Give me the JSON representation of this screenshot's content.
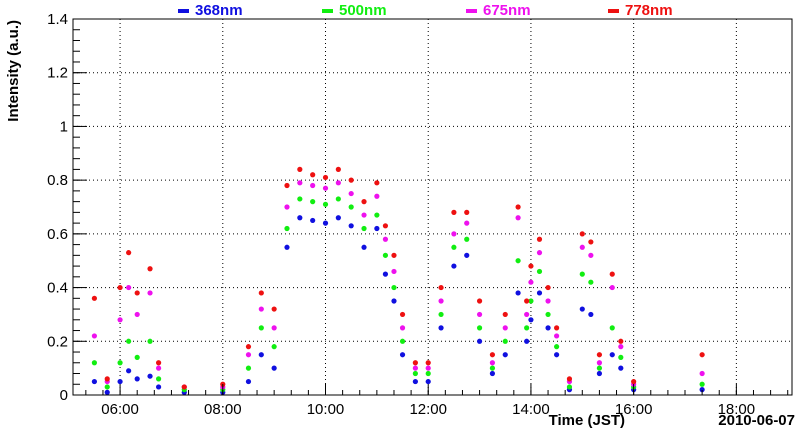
{
  "chart_data": {
    "type": "scatter",
    "title": "",
    "xlabel": "Time (JST)",
    "ylabel": "Intensity (a.u.)",
    "date_label": "2010-06-07",
    "xlim": [
      "05:05",
      "19:05"
    ],
    "ylim": [
      0,
      1.4
    ],
    "x_ticks": [
      "06:00",
      "08:00",
      "10:00",
      "12:00",
      "14:00",
      "16:00",
      "18:00"
    ],
    "y_ticks": [
      "0",
      "0.2",
      "0.4",
      "0.6",
      "0.8",
      "1",
      "1.2",
      "1.4"
    ],
    "grid": true,
    "legend_position": "top",
    "series": [
      {
        "name": "368nm",
        "color": "#1010e0",
        "points": [
          {
            "t": "05:30",
            "y": 0.05
          },
          {
            "t": "05:45",
            "y": 0.01
          },
          {
            "t": "06:00",
            "y": 0.05
          },
          {
            "t": "06:10",
            "y": 0.09
          },
          {
            "t": "06:20",
            "y": 0.06
          },
          {
            "t": "06:35",
            "y": 0.07
          },
          {
            "t": "06:45",
            "y": 0.03
          },
          {
            "t": "07:15",
            "y": 0.01
          },
          {
            "t": "08:00",
            "y": 0.01
          },
          {
            "t": "08:30",
            "y": 0.05
          },
          {
            "t": "08:45",
            "y": 0.15
          },
          {
            "t": "09:00",
            "y": 0.1
          },
          {
            "t": "09:15",
            "y": 0.55
          },
          {
            "t": "09:30",
            "y": 0.66
          },
          {
            "t": "09:45",
            "y": 0.65
          },
          {
            "t": "10:00",
            "y": 0.64
          },
          {
            "t": "10:15",
            "y": 0.66
          },
          {
            "t": "10:30",
            "y": 0.63
          },
          {
            "t": "10:45",
            "y": 0.55
          },
          {
            "t": "11:00",
            "y": 0.62
          },
          {
            "t": "11:10",
            "y": 0.45
          },
          {
            "t": "11:20",
            "y": 0.35
          },
          {
            "t": "11:30",
            "y": 0.15
          },
          {
            "t": "11:45",
            "y": 0.05
          },
          {
            "t": "12:00",
            "y": 0.05
          },
          {
            "t": "12:15",
            "y": 0.25
          },
          {
            "t": "12:30",
            "y": 0.48
          },
          {
            "t": "12:45",
            "y": 0.52
          },
          {
            "t": "13:00",
            "y": 0.2
          },
          {
            "t": "13:15",
            "y": 0.08
          },
          {
            "t": "13:30",
            "y": 0.15
          },
          {
            "t": "13:45",
            "y": 0.38
          },
          {
            "t": "13:55",
            "y": 0.2
          },
          {
            "t": "14:00",
            "y": 0.28
          },
          {
            "t": "14:10",
            "y": 0.38
          },
          {
            "t": "14:20",
            "y": 0.25
          },
          {
            "t": "14:30",
            "y": 0.15
          },
          {
            "t": "14:45",
            "y": 0.02
          },
          {
            "t": "15:00",
            "y": 0.32
          },
          {
            "t": "15:10",
            "y": 0.3
          },
          {
            "t": "15:20",
            "y": 0.08
          },
          {
            "t": "15:35",
            "y": 0.15
          },
          {
            "t": "15:45",
            "y": 0.1
          },
          {
            "t": "16:00",
            "y": 0.02
          },
          {
            "t": "17:20",
            "y": 0.02
          }
        ]
      },
      {
        "name": "500nm",
        "color": "#11ee11",
        "points": [
          {
            "t": "05:30",
            "y": 0.12
          },
          {
            "t": "05:45",
            "y": 0.03
          },
          {
            "t": "06:00",
            "y": 0.12
          },
          {
            "t": "06:10",
            "y": 0.2
          },
          {
            "t": "06:20",
            "y": 0.14
          },
          {
            "t": "06:35",
            "y": 0.2
          },
          {
            "t": "06:45",
            "y": 0.06
          },
          {
            "t": "07:15",
            "y": 0.02
          },
          {
            "t": "08:00",
            "y": 0.02
          },
          {
            "t": "08:30",
            "y": 0.1
          },
          {
            "t": "08:45",
            "y": 0.25
          },
          {
            "t": "09:00",
            "y": 0.18
          },
          {
            "t": "09:15",
            "y": 0.62
          },
          {
            "t": "09:30",
            "y": 0.73
          },
          {
            "t": "09:45",
            "y": 0.72
          },
          {
            "t": "10:00",
            "y": 0.71
          },
          {
            "t": "10:15",
            "y": 0.73
          },
          {
            "t": "10:30",
            "y": 0.7
          },
          {
            "t": "10:45",
            "y": 0.62
          },
          {
            "t": "11:00",
            "y": 0.67
          },
          {
            "t": "11:10",
            "y": 0.52
          },
          {
            "t": "11:20",
            "y": 0.4
          },
          {
            "t": "11:30",
            "y": 0.2
          },
          {
            "t": "11:45",
            "y": 0.08
          },
          {
            "t": "12:00",
            "y": 0.08
          },
          {
            "t": "12:15",
            "y": 0.3
          },
          {
            "t": "12:30",
            "y": 0.55
          },
          {
            "t": "12:45",
            "y": 0.58
          },
          {
            "t": "13:00",
            "y": 0.25
          },
          {
            "t": "13:15",
            "y": 0.1
          },
          {
            "t": "13:30",
            "y": 0.2
          },
          {
            "t": "13:45",
            "y": 0.5
          },
          {
            "t": "13:55",
            "y": 0.25
          },
          {
            "t": "14:00",
            "y": 0.35
          },
          {
            "t": "14:10",
            "y": 0.46
          },
          {
            "t": "14:20",
            "y": 0.3
          },
          {
            "t": "14:30",
            "y": 0.18
          },
          {
            "t": "14:45",
            "y": 0.03
          },
          {
            "t": "15:00",
            "y": 0.45
          },
          {
            "t": "15:10",
            "y": 0.42
          },
          {
            "t": "15:20",
            "y": 0.1
          },
          {
            "t": "15:35",
            "y": 0.25
          },
          {
            "t": "15:45",
            "y": 0.14
          },
          {
            "t": "16:00",
            "y": 0.03
          },
          {
            "t": "17:20",
            "y": 0.04
          }
        ]
      },
      {
        "name": "675nm",
        "color": "#ee11ee",
        "points": [
          {
            "t": "05:30",
            "y": 0.22
          },
          {
            "t": "05:45",
            "y": 0.05
          },
          {
            "t": "06:00",
            "y": 0.28
          },
          {
            "t": "06:10",
            "y": 0.4
          },
          {
            "t": "06:20",
            "y": 0.3
          },
          {
            "t": "06:35",
            "y": 0.38
          },
          {
            "t": "06:45",
            "y": 0.1
          },
          {
            "t": "07:15",
            "y": 0.03
          },
          {
            "t": "08:00",
            "y": 0.03
          },
          {
            "t": "08:30",
            "y": 0.15
          },
          {
            "t": "08:45",
            "y": 0.32
          },
          {
            "t": "09:00",
            "y": 0.25
          },
          {
            "t": "09:15",
            "y": 0.7
          },
          {
            "t": "09:30",
            "y": 0.79
          },
          {
            "t": "09:45",
            "y": 0.78
          },
          {
            "t": "10:00",
            "y": 0.77
          },
          {
            "t": "10:15",
            "y": 0.79
          },
          {
            "t": "10:30",
            "y": 0.75
          },
          {
            "t": "10:45",
            "y": 0.67
          },
          {
            "t": "11:00",
            "y": 0.74
          },
          {
            "t": "11:10",
            "y": 0.58
          },
          {
            "t": "11:20",
            "y": 0.46
          },
          {
            "t": "11:30",
            "y": 0.25
          },
          {
            "t": "11:45",
            "y": 0.1
          },
          {
            "t": "12:00",
            "y": 0.1
          },
          {
            "t": "12:15",
            "y": 0.35
          },
          {
            "t": "12:30",
            "y": 0.6
          },
          {
            "t": "12:45",
            "y": 0.64
          },
          {
            "t": "13:00",
            "y": 0.3
          },
          {
            "t": "13:15",
            "y": 0.12
          },
          {
            "t": "13:30",
            "y": 0.25
          },
          {
            "t": "13:45",
            "y": 0.66
          },
          {
            "t": "13:55",
            "y": 0.3
          },
          {
            "t": "14:00",
            "y": 0.42
          },
          {
            "t": "14:10",
            "y": 0.53
          },
          {
            "t": "14:20",
            "y": 0.35
          },
          {
            "t": "14:30",
            "y": 0.22
          },
          {
            "t": "14:45",
            "y": 0.05
          },
          {
            "t": "15:00",
            "y": 0.55
          },
          {
            "t": "15:10",
            "y": 0.52
          },
          {
            "t": "15:20",
            "y": 0.12
          },
          {
            "t": "15:35",
            "y": 0.4
          },
          {
            "t": "15:45",
            "y": 0.18
          },
          {
            "t": "16:00",
            "y": 0.04
          },
          {
            "t": "17:20",
            "y": 0.08
          }
        ]
      },
      {
        "name": "778nm",
        "color": "#ee1111",
        "points": [
          {
            "t": "05:30",
            "y": 0.36
          },
          {
            "t": "05:45",
            "y": 0.06
          },
          {
            "t": "06:00",
            "y": 0.4
          },
          {
            "t": "06:10",
            "y": 0.53
          },
          {
            "t": "06:20",
            "y": 0.38
          },
          {
            "t": "06:35",
            "y": 0.47
          },
          {
            "t": "06:45",
            "y": 0.12
          },
          {
            "t": "07:15",
            "y": 0.03
          },
          {
            "t": "08:00",
            "y": 0.04
          },
          {
            "t": "08:30",
            "y": 0.18
          },
          {
            "t": "08:45",
            "y": 0.38
          },
          {
            "t": "09:00",
            "y": 0.32
          },
          {
            "t": "09:15",
            "y": 0.78
          },
          {
            "t": "09:30",
            "y": 0.84
          },
          {
            "t": "09:45",
            "y": 0.82
          },
          {
            "t": "10:00",
            "y": 0.81
          },
          {
            "t": "10:15",
            "y": 0.84
          },
          {
            "t": "10:30",
            "y": 0.8
          },
          {
            "t": "10:45",
            "y": 0.72
          },
          {
            "t": "11:00",
            "y": 0.79
          },
          {
            "t": "11:10",
            "y": 0.63
          },
          {
            "t": "11:20",
            "y": 0.52
          },
          {
            "t": "11:30",
            "y": 0.3
          },
          {
            "t": "11:45",
            "y": 0.12
          },
          {
            "t": "12:00",
            "y": 0.12
          },
          {
            "t": "12:15",
            "y": 0.4
          },
          {
            "t": "12:30",
            "y": 0.68
          },
          {
            "t": "12:45",
            "y": 0.68
          },
          {
            "t": "13:00",
            "y": 0.35
          },
          {
            "t": "13:15",
            "y": 0.15
          },
          {
            "t": "13:30",
            "y": 0.3
          },
          {
            "t": "13:45",
            "y": 0.7
          },
          {
            "t": "13:55",
            "y": 0.35
          },
          {
            "t": "14:00",
            "y": 0.48
          },
          {
            "t": "14:10",
            "y": 0.58
          },
          {
            "t": "14:20",
            "y": 0.4
          },
          {
            "t": "14:30",
            "y": 0.25
          },
          {
            "t": "14:45",
            "y": 0.06
          },
          {
            "t": "15:00",
            "y": 0.6
          },
          {
            "t": "15:10",
            "y": 0.57
          },
          {
            "t": "15:20",
            "y": 0.15
          },
          {
            "t": "15:35",
            "y": 0.45
          },
          {
            "t": "15:45",
            "y": 0.2
          },
          {
            "t": "16:00",
            "y": 0.05
          },
          {
            "t": "17:20",
            "y": 0.15
          }
        ]
      }
    ]
  }
}
